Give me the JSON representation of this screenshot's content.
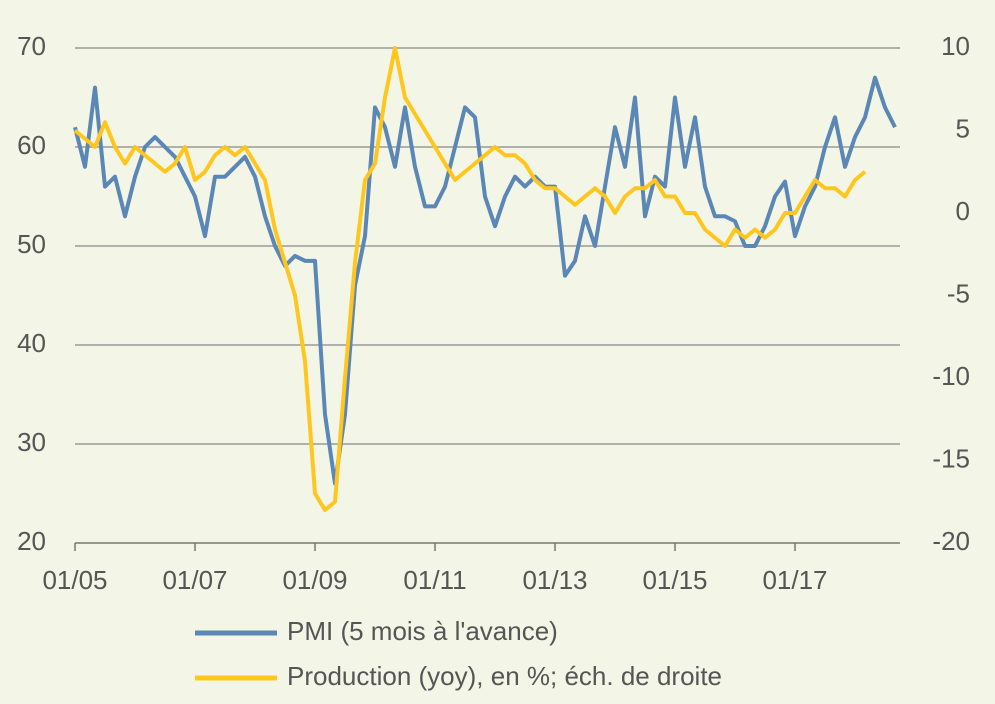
{
  "chart_data": {
    "type": "line",
    "categories": [
      "01/05",
      null,
      null,
      null,
      null,
      null,
      null,
      null,
      null,
      null,
      null,
      null,
      "01/07",
      null,
      null,
      null,
      null,
      null,
      null,
      null,
      null,
      null,
      null,
      null,
      "01/09",
      null,
      null,
      null,
      null,
      null,
      null,
      null,
      null,
      null,
      null,
      null,
      "01/11",
      null,
      null,
      null,
      null,
      null,
      null,
      null,
      null,
      null,
      null,
      null,
      "01/13",
      null,
      null,
      null,
      null,
      null,
      null,
      null,
      null,
      null,
      null,
      null,
      "01/15",
      null,
      null,
      null,
      null,
      null,
      null,
      null,
      null,
      null,
      null,
      null,
      "01/17",
      null,
      null,
      null,
      null,
      null,
      null,
      null,
      null,
      null,
      null
    ],
    "series": [
      {
        "name": "PMI (5 mois à l'avance)",
        "color": "#5b87b7",
        "axis": "y",
        "values": [
          62,
          58,
          66,
          56,
          57,
          53,
          57,
          60,
          61,
          60,
          59,
          57,
          55,
          51,
          57,
          57,
          58,
          59,
          57,
          53,
          50,
          48,
          49,
          48.5,
          48.5,
          33,
          26,
          33,
          46,
          51,
          64,
          62,
          58,
          64,
          58,
          54,
          54,
          56,
          60,
          64,
          63,
          55,
          52,
          55,
          57,
          56,
          57,
          56,
          56,
          47,
          48.5,
          53,
          50,
          56,
          62,
          58,
          65,
          53,
          57,
          56,
          65,
          58,
          63,
          56,
          53,
          53,
          52.5,
          50,
          50,
          52,
          55,
          56.5,
          51,
          54,
          56,
          60,
          63,
          58,
          61,
          63,
          67,
          64,
          62
        ]
      },
      {
        "name": "Production (yoy), en %; éch. de droite",
        "color": "#ffc61e",
        "axis": "y2",
        "values": [
          5,
          4.5,
          4,
          5.5,
          4,
          3,
          4,
          3.5,
          3,
          2.5,
          3,
          4,
          2,
          2.5,
          3.5,
          4,
          3.5,
          4,
          3,
          2,
          -1,
          -3,
          -5,
          -9,
          -17,
          -18,
          -17.5,
          -10,
          -3,
          2,
          3,
          7,
          10,
          7,
          6,
          5,
          4,
          3,
          2,
          2.5,
          3,
          3.5,
          4,
          3.5,
          3.5,
          3,
          2,
          1.5,
          1.5,
          1,
          0.5,
          1,
          1.5,
          1,
          0,
          1,
          1.5,
          1.5,
          2,
          1,
          1,
          0,
          0,
          -1,
          -1.5,
          -2,
          -1,
          -1.5,
          -1,
          -1.5,
          -1,
          0,
          0,
          1,
          2,
          1.5,
          1.5,
          1,
          2,
          2.5,
          null,
          null,
          null
        ]
      }
    ],
    "ylim": [
      20,
      70
    ],
    "yticks": [
      20,
      30,
      40,
      50,
      60,
      70
    ],
    "y2lim": [
      -20,
      10
    ],
    "y2ticks": [
      -20,
      -15,
      -10,
      -5,
      0,
      5,
      10
    ],
    "grid": true,
    "legend": "bottom"
  }
}
